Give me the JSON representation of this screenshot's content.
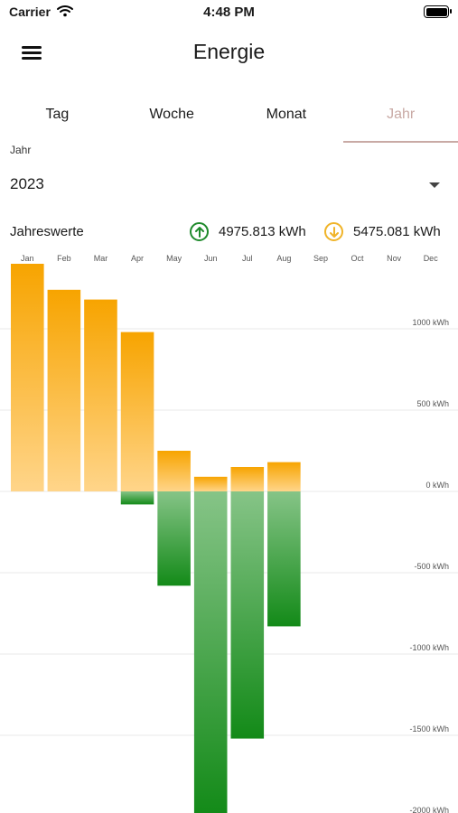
{
  "status_bar": {
    "carrier": "Carrier",
    "time": "4:48 PM"
  },
  "nav": {
    "title": "Energie",
    "menu_icon": "hamburger-menu-icon"
  },
  "tabs": [
    {
      "label": "Tag",
      "active": false
    },
    {
      "label": "Woche",
      "active": false
    },
    {
      "label": "Monat",
      "active": false
    },
    {
      "label": "Jahr",
      "active": true
    }
  ],
  "year_field": {
    "label": "Jahr",
    "value": "2023"
  },
  "summary": {
    "label": "Jahreswerte",
    "production": "4975.813 kWh",
    "consumption": "5475.081 kWh"
  },
  "colors": {
    "accent": "#c9aaa5",
    "consumption": "#f7a400",
    "consumption_light": "#ffd58a",
    "production": "#138a18",
    "production_light": "#86c487"
  },
  "chart_data": {
    "type": "bar",
    "categories": [
      "Jan",
      "Feb",
      "Mar",
      "Apr",
      "May",
      "Jun",
      "Jul",
      "Aug",
      "Sep",
      "Oct",
      "Nov",
      "Dec"
    ],
    "series": [
      {
        "values": [
          1400,
          1240,
          1180,
          980,
          250,
          90,
          150,
          180,
          null,
          null,
          null,
          null
        ]
      },
      {
        "values": [
          0,
          0,
          0,
          -80,
          -580,
          -1990,
          -1520,
          -830,
          null,
          null,
          null,
          null
        ]
      }
    ],
    "unit": "kWh",
    "y_ticks": [
      "1000 kWh",
      "500 kWh",
      "0 kWh",
      "-500 kWh",
      "-1000 kWh",
      "-1500 kWh",
      "-2000 kWh"
    ],
    "y_tick_values": [
      1000,
      500,
      0,
      -500,
      -1000,
      -1500,
      -2000
    ],
    "ylim": [
      -2000,
      1400
    ],
    "grid": true
  }
}
